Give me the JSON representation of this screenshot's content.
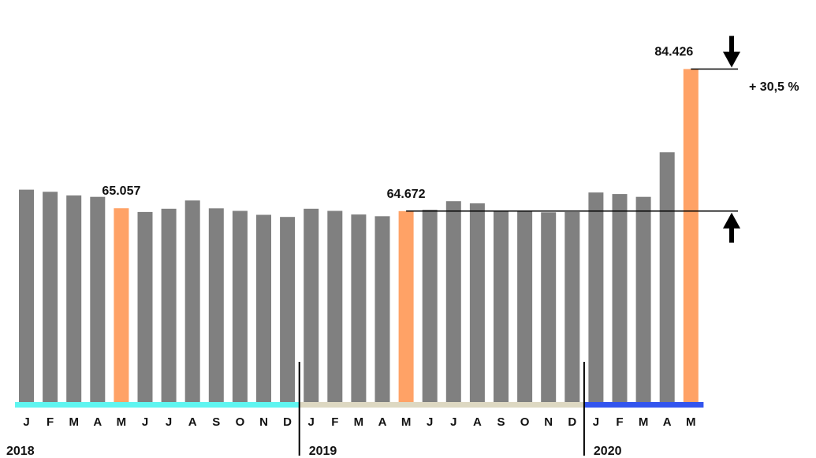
{
  "chart_data": {
    "type": "bar",
    "categories": [
      "J",
      "F",
      "M",
      "A",
      "M",
      "J",
      "J",
      "A",
      "S",
      "O",
      "N",
      "D",
      "J",
      "F",
      "M",
      "A",
      "M",
      "J",
      "J",
      "A",
      "S",
      "O",
      "N",
      "D",
      "J",
      "F",
      "M",
      "A",
      "M"
    ],
    "years": [
      {
        "label": "2018",
        "start": 0,
        "end": 11,
        "band_color": "#5ff5f0"
      },
      {
        "label": "2019",
        "start": 12,
        "end": 23,
        "band_color": "#ddd8c2"
      },
      {
        "label": "2020",
        "start": 24,
        "end": 28,
        "band_color": "#3355ee"
      }
    ],
    "values": [
      67650,
      67350,
      66850,
      66650,
      65057,
      64550,
      65000,
      66150,
      65050,
      64700,
      64150,
      63850,
      65000,
      64700,
      64200,
      63950,
      64672,
      64850,
      66050,
      65750,
      64750,
      64750,
      64500,
      64550,
      67250,
      67050,
      66650,
      72850,
      84426
    ],
    "highlight_indices": [
      4,
      16,
      28
    ],
    "colors": {
      "bar": "#808080",
      "highlight": "#ffa266",
      "arrow": "#000000"
    },
    "ylim": [
      38000,
      88000
    ],
    "data_labels": [
      {
        "index": 4,
        "text": "65.057"
      },
      {
        "index": 16,
        "text": "64.672"
      },
      {
        "index": 28,
        "text": "84.426"
      }
    ],
    "annotation": {
      "text": "+ 30,5 %",
      "from_index": 16,
      "to_index": 28
    }
  }
}
